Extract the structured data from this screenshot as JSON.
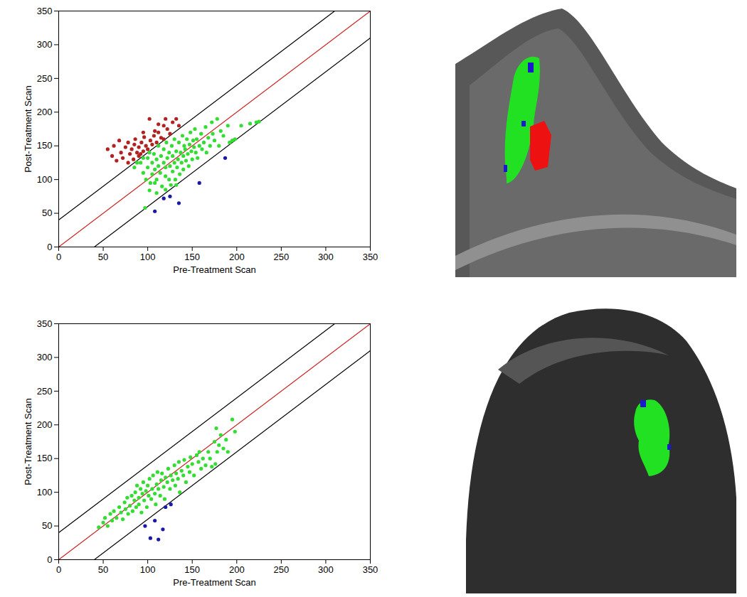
{
  "chart_data": [
    {
      "type": "scatter",
      "xlabel": "Pre-Treatment Scan",
      "ylabel": "Post-Treatment Scan",
      "xlim": [
        0,
        350
      ],
      "ylim": [
        0,
        350
      ],
      "xticks": [
        0,
        50,
        100,
        150,
        200,
        250,
        300,
        350
      ],
      "yticks": [
        0,
        50,
        100,
        150,
        200,
        250,
        300,
        350
      ],
      "grid": false,
      "series": [
        {
          "type": "line",
          "color": "#000000",
          "line_style": "solid",
          "x": [
            0,
            310
          ],
          "values": [
            40,
            350
          ]
        },
        {
          "type": "line",
          "color": "#000000",
          "line_style": "solid",
          "x": [
            40,
            350
          ],
          "values": [
            0,
            310
          ]
        },
        {
          "type": "line",
          "color": "#cc2222",
          "line_style": "solid",
          "x": [
            0,
            350
          ],
          "values": [
            0,
            350
          ]
        },
        {
          "type": "scatter",
          "color": "#33dd33",
          "marker": "circle",
          "x": [
            85,
            88,
            92,
            95,
            95,
            97,
            98,
            100,
            100,
            102,
            103,
            105,
            105,
            107,
            108,
            110,
            110,
            112,
            112,
            114,
            115,
            116,
            118,
            118,
            120,
            120,
            121,
            122,
            124,
            124,
            125,
            126,
            127,
            128,
            128,
            130,
            130,
            131,
            132,
            133,
            134,
            135,
            136,
            137,
            138,
            139,
            140,
            140,
            141,
            142,
            143,
            144,
            145,
            146,
            147,
            148,
            149,
            150,
            151,
            152,
            153,
            154,
            155,
            156,
            158,
            160,
            161,
            163,
            165,
            166,
            168,
            170,
            172,
            173,
            175,
            178,
            180,
            182,
            185,
            190,
            192,
            195,
            198,
            205,
            215,
            222,
            225,
            120,
            110,
            108,
            132,
            102
          ],
          "values": [
            118,
            125,
            125,
            110,
            132,
            58,
            100,
            118,
            132,
            140,
            95,
            125,
            108,
            138,
            115,
            130,
            100,
            120,
            150,
            110,
            135,
            90,
            125,
            145,
            105,
            118,
            155,
            132,
            100,
            140,
            120,
            92,
            150,
            112,
            135,
            125,
            160,
            100,
            142,
            118,
            130,
            155,
            108,
            140,
            125,
            165,
            135,
            115,
            150,
            145,
            128,
            160,
            138,
            120,
            152,
            170,
            142,
            130,
            158,
            148,
            175,
            140,
            160,
            132,
            150,
            168,
            145,
            155,
            178,
            140,
            162,
            150,
            185,
            168,
            158,
            190,
            150,
            172,
            165,
            180,
            155,
            158,
            160,
            180,
            183,
            185,
            186,
            85,
            80,
            95,
            92,
            84
          ]
        },
        {
          "type": "scatter",
          "color": "#b22222",
          "marker": "circle",
          "x": [
            55,
            60,
            62,
            65,
            68,
            70,
            72,
            75,
            78,
            78,
            80,
            82,
            84,
            85,
            86,
            88,
            90,
            90,
            92,
            93,
            95,
            96,
            98,
            100,
            102,
            103,
            105,
            107,
            110,
            112,
            115,
            118,
            118,
            122,
            125,
            128,
            132,
            135,
            112,
            108,
            95,
            120
          ],
          "values": [
            145,
            135,
            150,
            128,
            158,
            140,
            132,
            148,
            125,
            155,
            138,
            145,
            130,
            152,
            160,
            140,
            135,
            148,
            138,
            155,
            142,
            163,
            150,
            145,
            190,
            158,
            152,
            165,
            155,
            170,
            162,
            180,
            160,
            175,
            168,
            185,
            190,
            180,
            182,
            172,
            170,
            190
          ]
        },
        {
          "type": "scatter",
          "color": "#1a1aa8",
          "marker": "circle",
          "x": [
            108,
            118,
            125,
            135,
            158,
            187
          ],
          "values": [
            53,
            72,
            75,
            65,
            95,
            132
          ]
        }
      ]
    },
    {
      "type": "scatter",
      "xlabel": "Pre-Treatment Scan",
      "ylabel": "Post-Treatment Scan",
      "xlim": [
        0,
        350
      ],
      "ylim": [
        0,
        350
      ],
      "xticks": [
        0,
        50,
        100,
        150,
        200,
        250,
        300,
        350
      ],
      "yticks": [
        0,
        50,
        100,
        150,
        200,
        250,
        300,
        350
      ],
      "grid": false,
      "series": [
        {
          "type": "line",
          "color": "#000000",
          "line_style": "solid",
          "x": [
            0,
            310
          ],
          "values": [
            40,
            350
          ]
        },
        {
          "type": "line",
          "color": "#000000",
          "line_style": "solid",
          "x": [
            40,
            350
          ],
          "values": [
            0,
            310
          ]
        },
        {
          "type": "line",
          "color": "#cc2222",
          "line_style": "solid",
          "x": [
            0,
            350
          ],
          "values": [
            0,
            350
          ]
        },
        {
          "type": "scatter",
          "color": "#33dd33",
          "marker": "circle",
          "x": [
            45,
            50,
            52,
            55,
            58,
            60,
            62,
            65,
            68,
            70,
            72,
            74,
            75,
            77,
            78,
            80,
            82,
            83,
            85,
            86,
            87,
            88,
            90,
            90,
            92,
            93,
            94,
            95,
            96,
            98,
            99,
            100,
            101,
            102,
            104,
            105,
            106,
            108,
            109,
            110,
            111,
            112,
            114,
            115,
            116,
            118,
            119,
            120,
            122,
            123,
            125,
            126,
            128,
            130,
            131,
            132,
            134,
            135,
            136,
            138,
            140,
            141,
            143,
            145,
            147,
            148,
            150,
            152,
            155,
            157,
            158,
            160,
            162,
            165,
            168,
            170,
            172,
            175,
            177,
            178,
            180,
            182,
            185,
            188,
            195,
            198,
            190,
            176
          ],
          "values": [
            48,
            55,
            62,
            50,
            68,
            58,
            72,
            62,
            78,
            70,
            60,
            85,
            75,
            92,
            68,
            80,
            95,
            72,
            88,
            100,
            78,
            110,
            92,
            82,
            105,
            70,
            98,
            115,
            88,
            102,
            78,
            110,
            95,
            120,
            90,
            105,
            125,
            98,
            82,
            112,
            130,
            105,
            95,
            118,
            128,
            108,
            90,
            122,
            115,
            135,
            105,
            125,
            118,
            140,
            110,
            128,
            120,
            145,
            100,
            132,
            125,
            148,
            115,
            138,
            130,
            152,
            142,
            125,
            155,
            145,
            160,
            135,
            150,
            140,
            160,
            150,
            138,
            175,
            195,
            160,
            170,
            185,
            165,
            178,
            208,
            190,
            160,
            142
          ]
        },
        {
          "type": "scatter",
          "color": "#1a1aa8",
          "marker": "circle",
          "x": [
            97,
            103,
            108,
            112,
            117,
            120,
            126
          ],
          "values": [
            50,
            32,
            58,
            30,
            45,
            78,
            82
          ]
        }
      ]
    }
  ]
}
